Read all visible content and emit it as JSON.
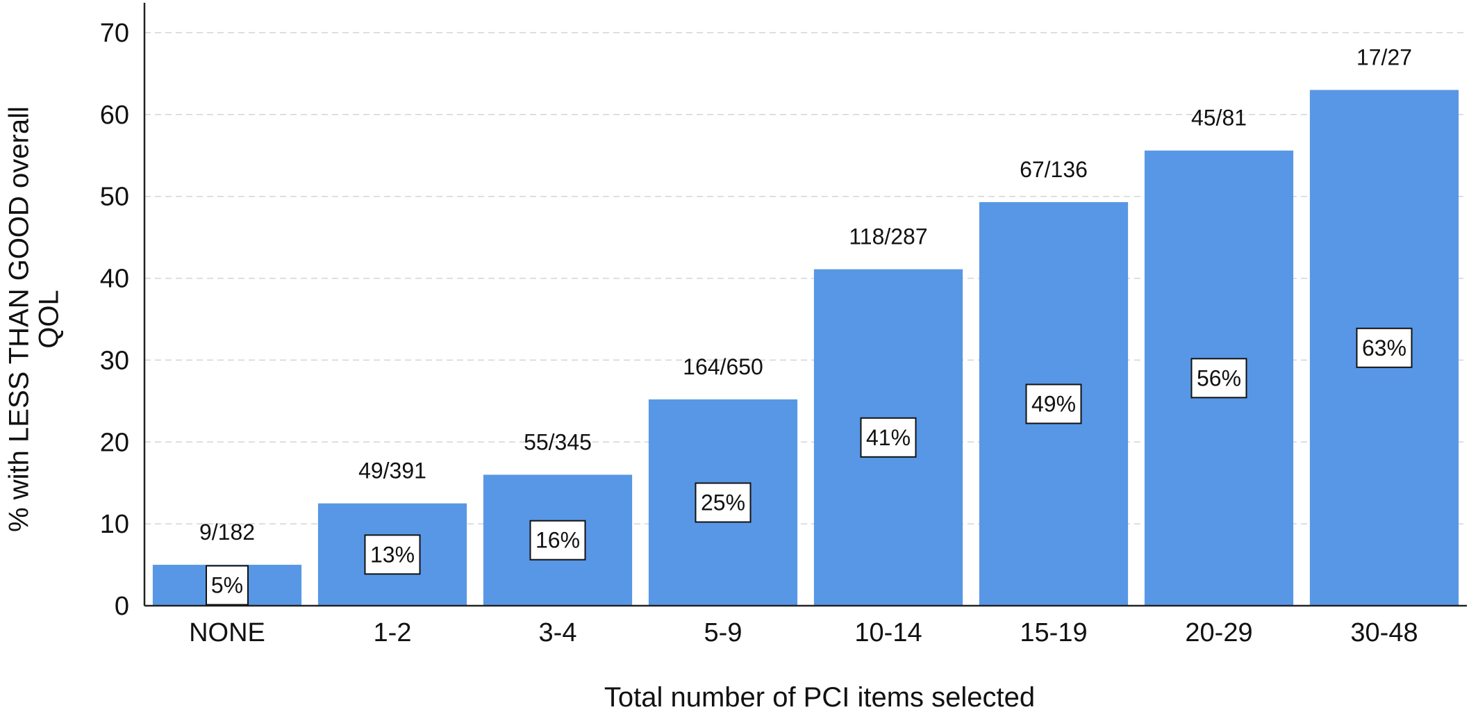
{
  "chart_data": {
    "type": "bar",
    "categories": [
      "NONE",
      "1-2",
      "3-4",
      "5-9",
      "10-14",
      "15-19",
      "20-29",
      "30-48"
    ],
    "values": [
      5,
      12.5,
      16,
      25.2,
      41.1,
      49.3,
      55.6,
      63
    ],
    "value_labels": [
      "5%",
      "13%",
      "16%",
      "25%",
      "41%",
      "49%",
      "56%",
      "63%"
    ],
    "count_labels": [
      "9/182",
      "49/391",
      "55/345",
      "164/650",
      "118/287",
      "67/136",
      "45/81",
      "17/27"
    ],
    "xlabel": "Total number of PCI items selected",
    "ylabel_lines": [
      "% with LESS THAN GOOD overall",
      "QOL"
    ],
    "ylim": [
      0,
      70
    ],
    "yticks": [
      0,
      10,
      20,
      30,
      40,
      50,
      60,
      70
    ],
    "grid": true,
    "colors": {
      "bar": "#5897e5",
      "grid": "#d4d4d4",
      "axis": "#222222"
    }
  }
}
